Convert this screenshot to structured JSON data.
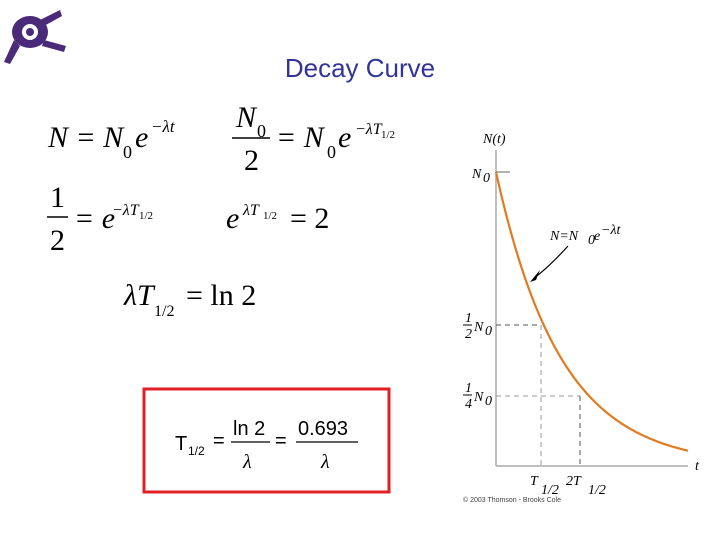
{
  "title": "Decay Curve",
  "equations": [
    [
      "N = N",
      "0",
      "e",
      "−λt"
    ],
    [
      "N",
      "0",
      "2",
      "= N",
      "0",
      "e",
      "−λT",
      "1/2"
    ],
    [
      "1",
      "2",
      "= e",
      "−λT",
      "1/2"
    ],
    [
      "e",
      "λT",
      "1/2",
      "= 2"
    ],
    [
      "λT",
      "1/2",
      "= ln 2"
    ]
  ],
  "boxed_formula": [
    "T",
    "1/2",
    "=",
    "ln 2",
    "λ",
    "=",
    "0.693",
    "λ"
  ],
  "graph": {
    "y_axis_label": "N(t)",
    "x_axis_label": "t",
    "n0": [
      "N",
      "0"
    ],
    "curve_label": [
      "N=N",
      "0",
      "e",
      "−λt"
    ],
    "half_level": [
      "1",
      "2",
      "N",
      "0"
    ],
    "quarter_level": [
      "1",
      "4",
      "N",
      "0"
    ],
    "t_half": [
      "T",
      "1/2"
    ],
    "two_t_half": [
      "2T",
      "1/2"
    ],
    "credit": "© 2003 Thomson - Brooks Cole"
  }
}
